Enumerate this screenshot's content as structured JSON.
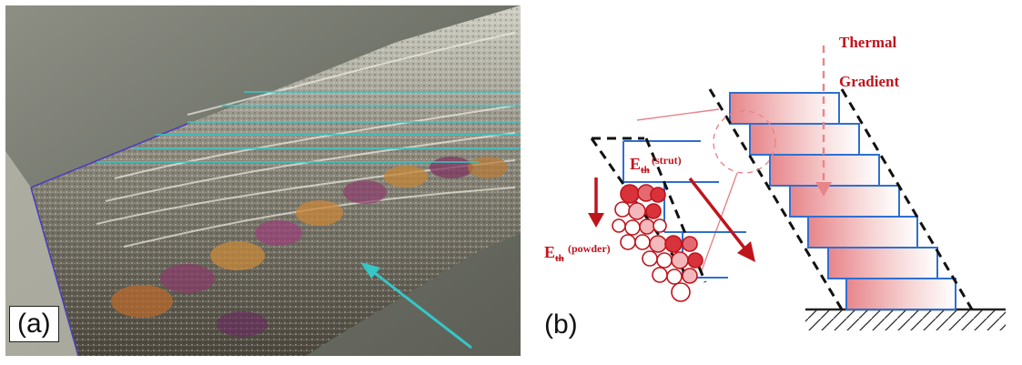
{
  "panel_a": {
    "label": "(a)"
  },
  "panel_b": {
    "label": "(b)",
    "thermal_gradient_line1": "Thermal",
    "thermal_gradient_line2": "Gradient",
    "eth_strut_main": "E",
    "eth_strut_sub": "th",
    "eth_strut_sup": "(strut)",
    "eth_powder_main": "E",
    "eth_powder_sub": "th",
    "eth_powder_sup": "(powder)"
  },
  "colors": {
    "accent_red": "#c0141c",
    "layer_blue": "#2f6fd0",
    "cyan": "#35c7c7",
    "photo_bg": "#7b7e74"
  }
}
